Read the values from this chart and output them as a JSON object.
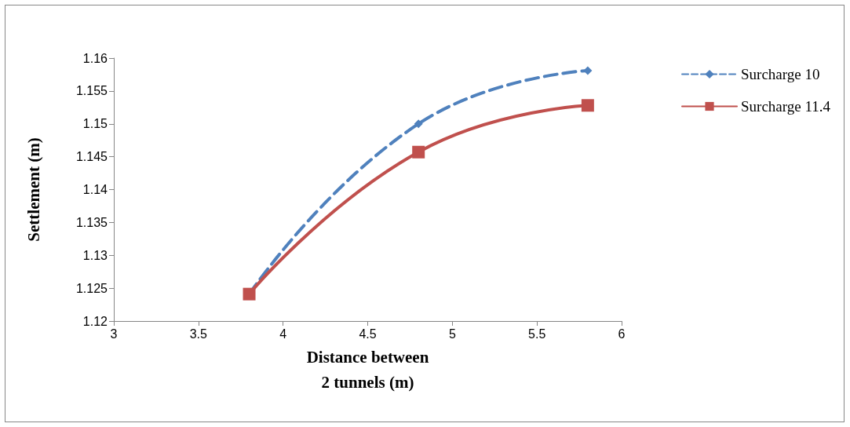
{
  "chart_data": {
    "type": "line",
    "xlabel": "Distance between\n2 tunnels (m)",
    "ylabel": "Settlement (m)",
    "xlim": [
      3,
      6
    ],
    "xticks": [
      3,
      3.5,
      4,
      4.5,
      5,
      5.5,
      6
    ],
    "ylim": [
      1.12,
      1.16
    ],
    "yticks": [
      1.12,
      1.125,
      1.13,
      1.135,
      1.14,
      1.145,
      1.15,
      1.155,
      1.16
    ],
    "grid": false,
    "legend": "right",
    "series": [
      {
        "name": "Surcharge 10",
        "color": "#4f81bd",
        "marker": "diamond",
        "line_style": "dashed",
        "x": [
          3.8,
          4.8,
          5.8
        ],
        "values": [
          1.1241,
          1.15,
          1.1581
        ]
      },
      {
        "name": "Surcharge 11.4",
        "color": "#c0504d",
        "marker": "square",
        "line_style": "solid",
        "x": [
          3.8,
          4.8,
          5.8
        ],
        "values": [
          1.1241,
          1.1457,
          1.1528
        ]
      }
    ]
  }
}
